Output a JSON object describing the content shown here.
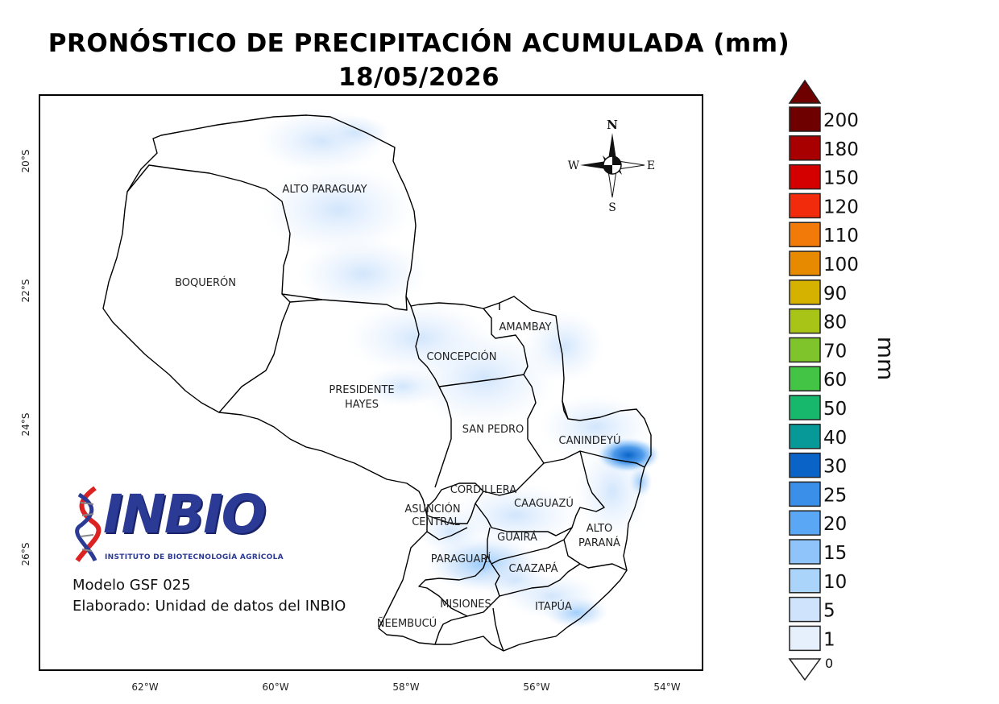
{
  "title": {
    "line1": "PRONÓSTICO DE PRECIPITACIÓN ACUMULADA (mm)",
    "line2": "18/05/2026"
  },
  "map": {
    "departments": [
      {
        "name": "ALTO PARAGUAY",
        "lines": [
          "ALTO PARAGUAY"
        ]
      },
      {
        "name": "BOQUERÓN",
        "lines": [
          "BOQUERÓN"
        ]
      },
      {
        "name": "PRESIDENTE HAYES",
        "lines": [
          "PRESIDENTE",
          "HAYES"
        ]
      },
      {
        "name": "CONCEPCIÓN",
        "lines": [
          "CONCEPCIÓN"
        ]
      },
      {
        "name": "AMAMBAY",
        "lines": [
          "AMAMBAY"
        ]
      },
      {
        "name": "SAN PEDRO",
        "lines": [
          "SAN PEDRO"
        ]
      },
      {
        "name": "CANINDEYÚ",
        "lines": [
          "CANINDEYÚ"
        ]
      },
      {
        "name": "CORDILLERA",
        "lines": [
          "CORDILLERA"
        ]
      },
      {
        "name": "ASUNCIÓN CENTRAL",
        "lines": [
          "ASUNCIÓN",
          "CENTRAL"
        ]
      },
      {
        "name": "CAAGUAZÚ",
        "lines": [
          "CAAGUAZÚ"
        ]
      },
      {
        "name": "GUAIRÁ",
        "lines": [
          "GUAIRÁ"
        ]
      },
      {
        "name": "ALTO PARANÁ",
        "lines": [
          "ALTO",
          "PARANÁ"
        ]
      },
      {
        "name": "PARAGUARÍ",
        "lines": [
          "PARAGUARÍ"
        ]
      },
      {
        "name": "CAAZAPÁ",
        "lines": [
          "CAAZAPÁ"
        ]
      },
      {
        "name": "MISIONES",
        "lines": [
          "MISIONES"
        ]
      },
      {
        "name": "ITAPÚA",
        "lines": [
          "ITAPÚA"
        ]
      },
      {
        "name": "ÑEEMBUCÚ",
        "lines": [
          "ÑEEMBUCÚ"
        ]
      }
    ],
    "x_ticks": [
      "62°W",
      "60°W",
      "58°W",
      "56°W",
      "54°W"
    ],
    "y_ticks": [
      "20°S",
      "22°S",
      "24°S",
      "26°S"
    ],
    "compass": {
      "n": "N",
      "s": "S",
      "e": "E",
      "w": "W"
    }
  },
  "legend": {
    "unit": "mm",
    "levels": [
      {
        "label": "200",
        "color": "#6e0000"
      },
      {
        "label": "180",
        "color": "#a80000"
      },
      {
        "label": "150",
        "color": "#d40000"
      },
      {
        "label": "120",
        "color": "#f22b0c"
      },
      {
        "label": "110",
        "color": "#f27a08"
      },
      {
        "label": "100",
        "color": "#e88a00"
      },
      {
        "label": "90",
        "color": "#d6b200"
      },
      {
        "label": "80",
        "color": "#a8c417"
      },
      {
        "label": "70",
        "color": "#7fc42a"
      },
      {
        "label": "60",
        "color": "#44c444"
      },
      {
        "label": "50",
        "color": "#18b86c"
      },
      {
        "label": "40",
        "color": "#079898"
      },
      {
        "label": "30",
        "color": "#0a64c8"
      },
      {
        "label": "25",
        "color": "#3a8fe8"
      },
      {
        "label": "20",
        "color": "#5aa8f5"
      },
      {
        "label": "15",
        "color": "#8ec4fa"
      },
      {
        "label": "10",
        "color": "#abd4fb"
      },
      {
        "label": "5",
        "color": "#cfe4fc"
      },
      {
        "label": "1",
        "color": "#e6f0fd"
      }
    ],
    "max_arrow_color": "#6e0000",
    "min_label": "0"
  },
  "credits": {
    "logo_text": "INBIO",
    "logo_subtitle": "INSTITUTO DE BIOTECNOLOGÍA AGRÍCOLA",
    "model": "Modelo GSF 025",
    "made_by": "Elaborado: Unidad de datos del INBIO"
  }
}
